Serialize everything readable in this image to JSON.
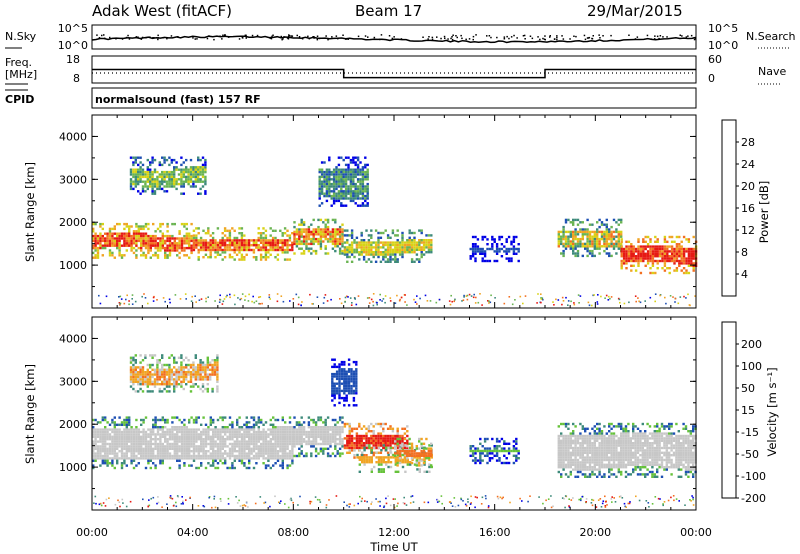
{
  "header": {
    "site": "Adak West (fitACF)",
    "beam": "Beam 17",
    "date": "29/Mar/2015"
  },
  "noise_panel": {
    "left_label": "N.Sky",
    "right_label": "N.Search",
    "left_ticks": [
      "10^5",
      "10^0"
    ],
    "right_ticks": [
      "10^5",
      "10^0"
    ]
  },
  "freq_panel": {
    "left_label_line1": "Freq.",
    "left_label_line2": "[MHz]",
    "right_label": "Nave",
    "left_ticks": [
      "18",
      "8"
    ],
    "right_ticks": [
      "60",
      "0"
    ]
  },
  "cpid": {
    "label": "CPID",
    "text": "normalsound (fast) 157 RF"
  },
  "chart_data": [
    {
      "type": "heatmap",
      "title": "Power",
      "ylabel": "Slant Range [km]",
      "xlabel": "",
      "y_ticks": [
        "1000",
        "2000",
        "3000",
        "4000"
      ],
      "ylim": [
        0,
        4500
      ],
      "xlim_hours": [
        0,
        24
      ],
      "colorbar_label": "Power [dB]",
      "colorbar_ticks": [
        "4",
        "8",
        "12",
        "16",
        "20",
        "24",
        "28"
      ],
      "colors": [
        "#0000e6",
        "#1d4fb3",
        "#3d8a7a",
        "#6ab452",
        "#d8d216",
        "#f0a424",
        "#f36f21",
        "#e61a14"
      ],
      "bands": [
        {
          "t0": 0.0,
          "t1": 4.0,
          "r0": 1400,
          "r1": 1750,
          "level": 6,
          "halo": 2
        },
        {
          "t0": 4.0,
          "t1": 8.0,
          "r0": 1350,
          "r1": 1650,
          "level": 6,
          "halo": 2
        },
        {
          "t0": 8.0,
          "t1": 10.0,
          "r0": 1500,
          "r1": 1850,
          "level": 5,
          "halo": 2
        },
        {
          "t0": 10.0,
          "t1": 13.5,
          "r0": 1300,
          "r1": 1600,
          "level": 4,
          "halo": 1
        },
        {
          "t0": 1.5,
          "t1": 4.5,
          "r0": 2900,
          "r1": 3300,
          "level": 3,
          "halo": 1
        },
        {
          "t0": 9.0,
          "t1": 11.0,
          "r0": 2600,
          "r1": 3300,
          "level": 2,
          "halo": 1
        },
        {
          "t0": 18.5,
          "t1": 21.0,
          "r0": 1450,
          "r1": 1850,
          "level": 4,
          "halo": 2
        },
        {
          "t0": 21.0,
          "t1": 24.0,
          "r0": 1050,
          "r1": 1450,
          "level": 7,
          "halo": 2
        },
        {
          "t0": 15.0,
          "t1": 17.0,
          "r0": 1350,
          "r1": 1450,
          "level": 1,
          "halo": 0
        }
      ]
    },
    {
      "type": "heatmap",
      "title": "Velocity",
      "ylabel": "Slant Range [km]",
      "xlabel": "Time UT",
      "x_ticks": [
        "00:00",
        "04:00",
        "08:00",
        "12:00",
        "16:00",
        "20:00",
        "00:00"
      ],
      "y_ticks": [
        "1000",
        "2000",
        "3000",
        "4000"
      ],
      "ylim": [
        0,
        4500
      ],
      "xlim_hours": [
        0,
        24
      ],
      "colorbar_label": "Velocity [m s⁻¹]",
      "colorbar_ticks": [
        "200",
        "100",
        "50",
        "15",
        "-15",
        "-50",
        "-100",
        "-200"
      ],
      "colors": [
        "#0000e6",
        "#1d4fb3",
        "#3d8a7a",
        "#66c23a",
        "#c7c7c7",
        "#f0a424",
        "#f36f21",
        "#e61a14"
      ],
      "bands": [
        {
          "t0": 0.0,
          "t1": 8.0,
          "r0": 1200,
          "r1": 1950,
          "level": 4,
          "halo": 0
        },
        {
          "t0": 8.0,
          "t1": 10.0,
          "r0": 1500,
          "r1": 1950,
          "level": 4,
          "halo": 0
        },
        {
          "t0": 10.0,
          "t1": 12.5,
          "r0": 1450,
          "r1": 1800,
          "level": 7,
          "halo": 1
        },
        {
          "t0": 10.5,
          "t1": 13.5,
          "r0": 1150,
          "r1": 1300,
          "level": 5,
          "halo": 0
        },
        {
          "t0": 12.0,
          "t1": 13.5,
          "r0": 1300,
          "r1": 1450,
          "level": 6,
          "halo": 0
        },
        {
          "t0": 1.5,
          "t1": 5.0,
          "r0": 3000,
          "r1": 3400,
          "level": 5,
          "halo": 1
        },
        {
          "t0": 9.5,
          "t1": 10.5,
          "r0": 2700,
          "r1": 3300,
          "level": 1,
          "halo": 0
        },
        {
          "t0": 18.5,
          "t1": 24.0,
          "r0": 1000,
          "r1": 1800,
          "level": 4,
          "halo": 0
        },
        {
          "t0": 15.0,
          "t1": 17.0,
          "r0": 1350,
          "r1": 1450,
          "level": 3,
          "halo": 0
        }
      ]
    }
  ],
  "freq_series": {
    "hours": [
      0,
      10.0,
      10.0,
      18.0,
      18.0,
      24
    ],
    "mhz": [
      13,
      13,
      10,
      10,
      13,
      13
    ]
  },
  "time_axis": {
    "xlabel": "Time UT",
    "ticks": [
      "00:00",
      "04:00",
      "08:00",
      "12:00",
      "16:00",
      "20:00",
      "00:00"
    ]
  }
}
